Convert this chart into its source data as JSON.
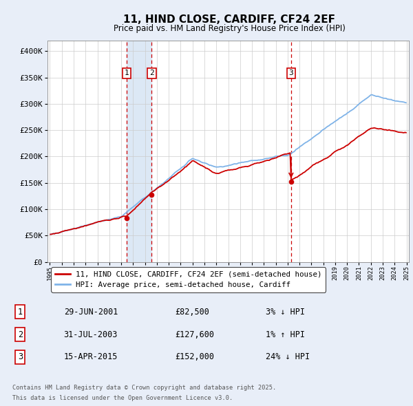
{
  "title": "11, HIND CLOSE, CARDIFF, CF24 2EF",
  "subtitle": "Price paid vs. HM Land Registry's House Price Index (HPI)",
  "legend_line1": "11, HIND CLOSE, CARDIFF, CF24 2EF (semi-detached house)",
  "legend_line2": "HPI: Average price, semi-detached house, Cardiff",
  "sale1_date": "29-JUN-2001",
  "sale1_price": 82500,
  "sale1_hpi_text": "3% ↓ HPI",
  "sale2_date": "31-JUL-2003",
  "sale2_price": 127600,
  "sale2_hpi_text": "1% ↑ HPI",
  "sale3_date": "15-APR-2015",
  "sale3_price": 152000,
  "sale3_hpi_text": "24% ↓ HPI",
  "footer_line1": "Contains HM Land Registry data © Crown copyright and database right 2025.",
  "footer_line2": "This data is licensed under the Open Government Licence v3.0.",
  "bg_color": "#e8eef8",
  "plot_bg_color": "#ffffff",
  "grid_color": "#cccccc",
  "hpi_line_color": "#7fb3e8",
  "price_line_color": "#cc0000",
  "dashed_line_color": "#cc0000",
  "highlight_color": "#dce8f5",
  "ylim": [
    0,
    420000
  ],
  "yticks": [
    0,
    50000,
    100000,
    150000,
    200000,
    250000,
    300000,
    350000,
    400000
  ],
  "ytick_labels": [
    "£0",
    "£50K",
    "£100K",
    "£150K",
    "£200K",
    "£250K",
    "£300K",
    "£350K",
    "£400K"
  ],
  "x_start_year": 1995,
  "x_end_year": 2025,
  "sale1_x": 2001.46,
  "sale2_x": 2003.57,
  "sale3_x": 2015.29
}
